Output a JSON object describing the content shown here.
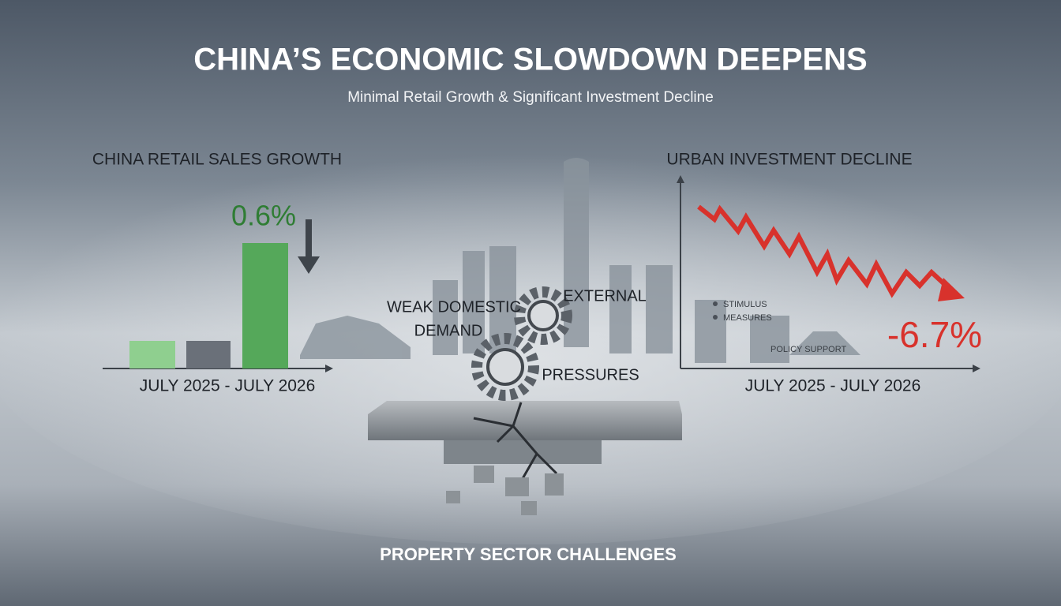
{
  "header": {
    "title": "CHINA’S ECONOMIC SLOWDOWN DEEPENS",
    "subtitle": "Minimal Retail Growth & Significant Investment Decline"
  },
  "retail": {
    "title": "CHINA RETAIL SALES GROWTH",
    "value": "0.6%",
    "period": "JULY 2025 - JULY 2026"
  },
  "center": {
    "demand": [
      "WEAK DOMESTIC",
      "DEMAND"
    ],
    "external": [
      "EXTERNAL",
      "PRESSURES"
    ],
    "property": "PROPERTY SECTOR CHALLENGES"
  },
  "investment": {
    "title": "URBAN INVESTMENT DECLINE",
    "value": "-6.7%",
    "period": "JULY 2025 - JULY 2026",
    "legend": [
      "STIMULUS",
      "MEASURES"
    ],
    "note": "POLICY SUPPORT"
  }
}
